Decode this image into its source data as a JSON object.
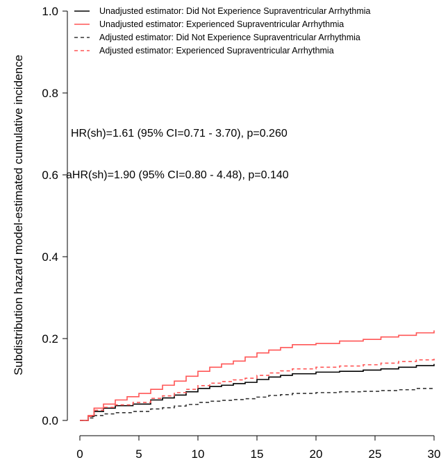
{
  "chart_data": {
    "type": "line",
    "step": true,
    "title": "",
    "xlabel": "",
    "ylabel": "Subdistribution hazard model-estimated cumulative incidence",
    "xlim": [
      0,
      30
    ],
    "ylim": [
      0,
      1
    ],
    "x_ticks": [
      "0",
      "5",
      "10",
      "15",
      "20",
      "25",
      "30"
    ],
    "y_ticks": [
      "0.0",
      "0.2",
      "0.4",
      "0.6",
      "0.8",
      "1.0"
    ],
    "grid": false,
    "legend_position": "top-right",
    "annotations": [
      "HR(sh)=1.61 (95% CI=0.71 - 3.70), p=0.260",
      "aHR(sh)=1.90 (95% CI=0.80 - 4.48), p=0.140"
    ],
    "series": [
      {
        "name": "Unadjusted estimator: Did Not Experience Supraventricular Arrhythmia",
        "color": "#000000",
        "dash": "solid",
        "x": [
          0,
          0.7,
          1.2,
          2.0,
          3.0,
          4.5,
          6.0,
          7.0,
          8.0,
          9.0,
          10.0,
          11.0,
          12.0,
          13.0,
          14.0,
          15.0,
          16.0,
          17.0,
          18.0,
          20.0,
          22.0,
          24.0,
          25.5,
          27.0,
          28.5,
          30.0
        ],
        "y": [
          0,
          0.01,
          0.022,
          0.03,
          0.036,
          0.04,
          0.05,
          0.055,
          0.062,
          0.07,
          0.078,
          0.083,
          0.086,
          0.09,
          0.093,
          0.1,
          0.106,
          0.11,
          0.114,
          0.118,
          0.12,
          0.123,
          0.126,
          0.13,
          0.134,
          0.138
        ]
      },
      {
        "name": "Unadjusted estimator: Experienced Supraventricular Arrhythmia",
        "color": "#ff5555",
        "dash": "solid",
        "x": [
          0,
          0.7,
          1.2,
          2.0,
          3.0,
          4.0,
          5.0,
          6.0,
          7.0,
          8.0,
          9.0,
          10.0,
          11.0,
          12.0,
          13.0,
          14.0,
          15.0,
          16.0,
          17.0,
          18.0,
          20.0,
          22.0,
          24.0,
          25.5,
          27.0,
          28.5,
          30.0
        ],
        "y": [
          0,
          0.012,
          0.03,
          0.04,
          0.05,
          0.058,
          0.066,
          0.076,
          0.086,
          0.096,
          0.108,
          0.12,
          0.13,
          0.138,
          0.145,
          0.155,
          0.165,
          0.172,
          0.178,
          0.185,
          0.188,
          0.194,
          0.198,
          0.204,
          0.208,
          0.214,
          0.22
        ]
      },
      {
        "name": "Adjusted estimator: Did Not Experience Supraventricular Arrhythmia",
        "color": "#333333",
        "dash": "dashed",
        "x": [
          0,
          0.7,
          1.2,
          2.0,
          3.0,
          4.5,
          6.0,
          7.0,
          8.0,
          9.0,
          10.0,
          11.0,
          12.0,
          13.0,
          14.0,
          15.0,
          16.0,
          17.0,
          18.0,
          20.0,
          22.0,
          24.0,
          25.5,
          27.0,
          28.5,
          30.0
        ],
        "y": [
          0,
          0.006,
          0.012,
          0.016,
          0.019,
          0.022,
          0.028,
          0.031,
          0.035,
          0.039,
          0.044,
          0.047,
          0.049,
          0.051,
          0.053,
          0.057,
          0.061,
          0.063,
          0.066,
          0.068,
          0.07,
          0.071,
          0.073,
          0.075,
          0.078,
          0.08
        ]
      },
      {
        "name": "Adjusted estimator: Experienced Supraventricular Arrhythmia",
        "color": "#ff5555",
        "dash": "dashed",
        "x": [
          0,
          0.7,
          1.2,
          2.0,
          3.0,
          4.5,
          6.0,
          7.0,
          8.0,
          9.0,
          10.0,
          11.0,
          12.0,
          13.0,
          14.0,
          15.0,
          16.0,
          17.0,
          18.0,
          20.0,
          22.0,
          24.0,
          25.5,
          27.0,
          28.5,
          30.0
        ],
        "y": [
          0,
          0.01,
          0.025,
          0.032,
          0.038,
          0.044,
          0.054,
          0.06,
          0.068,
          0.076,
          0.085,
          0.091,
          0.095,
          0.099,
          0.103,
          0.11,
          0.116,
          0.121,
          0.126,
          0.13,
          0.133,
          0.136,
          0.14,
          0.144,
          0.148,
          0.152
        ]
      }
    ]
  }
}
